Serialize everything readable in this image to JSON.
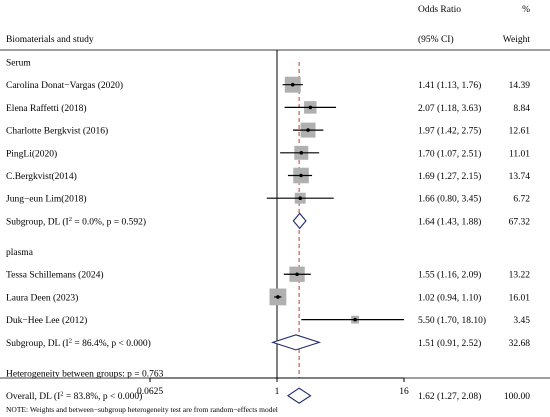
{
  "header": {
    "study": "Biomaterials and study",
    "or_line1": "Odds Ratio",
    "or_line2": "(95% CI)",
    "weight_line1": "%",
    "weight_line2": "Weight"
  },
  "chart_data": {
    "type": "forest",
    "scale": "log",
    "xlim": [
      0.0625,
      16
    ],
    "ticks": [
      "0.0625",
      "1",
      "16"
    ],
    "reference_line": 1,
    "overall_line": 1.62,
    "groups": [
      {
        "name": "Serum",
        "studies": [
          {
            "label": "Carolina Donat−Vargas (2020)",
            "or": 1.41,
            "lo": 1.13,
            "hi": 1.76,
            "ci_text": "1.41 (1.13, 1.76)",
            "weight": "14.39"
          },
          {
            "label": "Elena Raffetti (2018)",
            "or": 2.07,
            "lo": 1.18,
            "hi": 3.63,
            "ci_text": "2.07 (1.18, 3.63)",
            "weight": "8.84"
          },
          {
            "label": "Charlotte Bergkvist (2016)",
            "or": 1.97,
            "lo": 1.42,
            "hi": 2.75,
            "ci_text": "1.97 (1.42, 2.75)",
            "weight": "12.61"
          },
          {
            "label": "PingLi(2020)",
            "or": 1.7,
            "lo": 1.07,
            "hi": 2.51,
            "ci_text": "1.70 (1.07, 2.51)",
            "weight": "11.01"
          },
          {
            "label": "C.Bergkvist(2014)",
            "or": 1.69,
            "lo": 1.27,
            "hi": 2.15,
            "ci_text": "1.69 (1.27, 2.15)",
            "weight": "13.74"
          },
          {
            "label": "Jung−eun Lim(2018)",
            "or": 1.66,
            "lo": 0.8,
            "hi": 3.45,
            "ci_text": "1.66 (0.80, 3.45)",
            "weight": "6.72"
          }
        ],
        "subgroup": {
          "label_pre": "Subgroup, DL (I",
          "label_post": " = 0.0%, p = 0.592)",
          "or": 1.64,
          "lo": 1.43,
          "hi": 1.88,
          "ci_text": "1.64 (1.43, 1.88)",
          "weight": "67.32"
        }
      },
      {
        "name": "plasma",
        "studies": [
          {
            "label": "Tessa Schillemans (2024)",
            "or": 1.55,
            "lo": 1.16,
            "hi": 2.09,
            "ci_text": "1.55 (1.16, 2.09)",
            "weight": "13.22"
          },
          {
            "label": "Laura Deen (2023)",
            "or": 1.02,
            "lo": 0.94,
            "hi": 1.1,
            "ci_text": "1.02 (0.94, 1.10)",
            "weight": "16.01"
          },
          {
            "label": "Duk−Hee Lee (2012)",
            "or": 5.5,
            "lo": 1.7,
            "hi": 18.1,
            "ci_text": "5.50 (1.70, 18.10)",
            "weight": "3.45"
          }
        ],
        "subgroup": {
          "label_pre": "Subgroup, DL (I",
          "label_post": " = 86.4%, p < 0.000)",
          "or": 1.51,
          "lo": 0.91,
          "hi": 2.52,
          "ci_text": "1.51 (0.91, 2.52)",
          "weight": "32.68"
        }
      }
    ],
    "heterogeneity": "Heterogeneity between groups: p = 0.763",
    "overall": {
      "label_pre": "Overall, DL (I",
      "label_post": " = 83.8%, p < 0.000)",
      "or": 1.62,
      "lo": 1.27,
      "hi": 2.08,
      "ci_text": "1.62 (1.27, 2.08)",
      "weight": "100.00"
    },
    "superscript": "2",
    "note": "NOTE: Weights and between−subgroup heterogeneity test are from random−effects model",
    "colors": {
      "box": "#b0b0b0",
      "diamond": "#1f2a6b",
      "overall_line": "#c0392b",
      "line": "#000000"
    }
  }
}
